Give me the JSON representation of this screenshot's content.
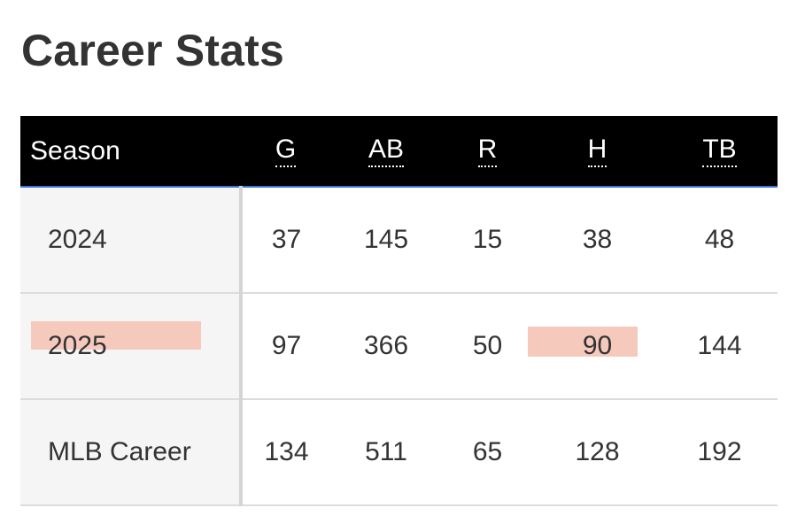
{
  "page": {
    "title": "Career Stats"
  },
  "table": {
    "columns": [
      "Season",
      "G",
      "AB",
      "R",
      "H",
      "TB"
    ],
    "rows": [
      {
        "season": "2024",
        "g": "37",
        "ab": "145",
        "r": "15",
        "h": "38",
        "tb": "48"
      },
      {
        "season": "2025",
        "g": "97",
        "ab": "366",
        "r": "50",
        "h": "90",
        "tb": "144"
      },
      {
        "season": "MLB Career",
        "g": "134",
        "ab": "511",
        "r": "65",
        "h": "128",
        "tb": "192"
      }
    ],
    "highlight_color": "#f6c9bd",
    "header_background": "#000000",
    "season_column_background": "#f5f5f5"
  }
}
